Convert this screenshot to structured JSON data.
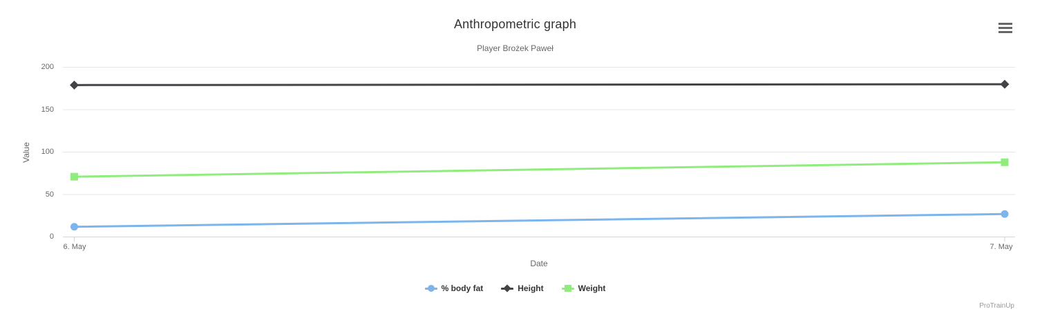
{
  "chart_data": {
    "type": "line",
    "title": "Anthropometric graph",
    "subtitle": "Player Brożek Paweł",
    "xlabel": "Date",
    "ylabel": "Value",
    "x_categories": [
      "6. May",
      "7. May"
    ],
    "y_ticks": [
      0,
      50,
      100,
      150,
      200
    ],
    "ylim": [
      0,
      200
    ],
    "grid": "horizontal-only",
    "legend_position": "bottom-center",
    "series": [
      {
        "name": "% body fat",
        "values": [
          12,
          27
        ],
        "color": "#7cb5ec",
        "marker": "circle"
      },
      {
        "name": "Height",
        "values": [
          179,
          180
        ],
        "color": "#434348",
        "marker": "diamond"
      },
      {
        "name": "Weight",
        "values": [
          71,
          88
        ],
        "color": "#90ed7d",
        "marker": "square"
      }
    ],
    "colors": {
      "grid_line": "#e6e6e6",
      "axis_line": "#ccd6eb",
      "tick_label": "#666666",
      "title_text": "#333333",
      "legend_text": "#333333",
      "menu_icon": "#666666"
    }
  },
  "menu": {
    "icon": "hamburger-menu-icon"
  },
  "credits": {
    "text": "ProTrainUp"
  }
}
